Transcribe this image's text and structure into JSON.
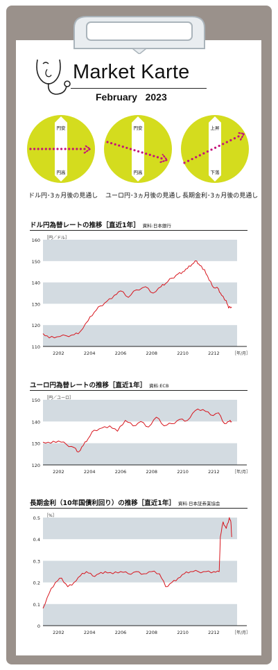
{
  "header": {
    "title": "Market Karte",
    "month": "February",
    "year": "2023"
  },
  "outlook": [
    {
      "top": "円安",
      "bottom": "円高",
      "caption": "ドル円･3ヵ月後の見通し",
      "direction": "flat"
    },
    {
      "top": "円安",
      "bottom": "円高",
      "caption": "ユーロ円･3ヵ月後の見通し",
      "direction": "down"
    },
    {
      "top": "上昇",
      "bottom": "下落",
      "caption": "長期金利･3ヵ月後の見通し",
      "direction": "up"
    }
  ],
  "colors": {
    "accent": "#d4dc1e",
    "dots": "#c4127a",
    "line": "#d7141c",
    "band": "#d3dbe1",
    "board": "#9a918b"
  },
  "chart_data": [
    {
      "type": "line",
      "title": "ドル円為替レートの推移［直近1年］",
      "source": "資料:日本銀行",
      "unit": "［円／ドル］",
      "x_unit": "［年/月］",
      "xticks": [
        "2202",
        "2204",
        "2206",
        "2208",
        "2210",
        "2212"
      ],
      "yticks": [
        "160",
        "150",
        "140",
        "130",
        "120",
        "110"
      ],
      "ylim": [
        110,
        160
      ],
      "xlim": [
        0,
        12.5
      ],
      "bands": [
        [
          150,
          160
        ],
        [
          130,
          140
        ],
        [
          110,
          120
        ]
      ],
      "series": [
        {
          "x": [
            0,
            0.4,
            0.9,
            1.5,
            2,
            2.4,
            2.9,
            3.3,
            3.7,
            4.1,
            4.6,
            5,
            5.5,
            6,
            6.6,
            7.1,
            7.6,
            7.9,
            8.3,
            8.7,
            9,
            9.3,
            9.6,
            9.9,
            10.1,
            10.4,
            10.7,
            11,
            11.3,
            11.5,
            11.8,
            11.95,
            12.15
          ],
          "y": [
            116,
            114,
            114.5,
            115,
            115.5,
            117,
            122,
            126,
            129,
            131,
            134,
            136,
            133,
            136.5,
            138,
            135,
            138,
            139.5,
            142,
            144,
            145,
            146.5,
            148.5,
            150,
            148,
            146,
            141,
            137.5,
            137,
            134,
            131.5,
            128,
            128.5
          ]
        }
      ]
    },
    {
      "type": "line",
      "title": "ユーロ円為替レートの推移［直近1年］",
      "source": "資料:ECB",
      "unit": "［円／ユーロ］",
      "x_unit": "［年/月］",
      "xticks": [
        "2202",
        "2204",
        "2206",
        "2208",
        "2210",
        "2212"
      ],
      "yticks": [
        "150",
        "140",
        "130",
        "120"
      ],
      "ylim": [
        120,
        150
      ],
      "xlim": [
        0,
        12.5
      ],
      "bands": [
        [
          140,
          150
        ],
        [
          120,
          130
        ]
      ],
      "series": [
        {
          "x": [
            0,
            0.5,
            1,
            1.5,
            2,
            2.3,
            2.6,
            2.9,
            3.3,
            3.8,
            4.3,
            4.8,
            5.3,
            5.8,
            6.3,
            6.8,
            7.3,
            7.8,
            8.3,
            8.8,
            9.3,
            9.8,
            10.3,
            10.8,
            11.3,
            11.7,
            12,
            12.15
          ],
          "y": [
            130.5,
            130,
            131,
            129.5,
            128,
            126,
            129,
            132,
            136,
            137,
            138,
            135.5,
            140.5,
            138,
            140,
            137.5,
            142,
            138,
            139,
            141,
            140.5,
            145,
            145.5,
            143,
            144,
            139,
            140,
            140
          ]
        }
      ]
    },
    {
      "type": "line",
      "title": "長期金利（10年国債利回り）の推移［直近1年］",
      "source": "資料:日本証券業協会",
      "unit": "［%］",
      "x_unit": "［年/月］",
      "xticks": [
        "2202",
        "2204",
        "2206",
        "2208",
        "2210",
        "2212"
      ],
      "yticks": [
        "0.5",
        "0.4",
        "0.3",
        "0.2",
        "0.1",
        "0"
      ],
      "ylim": [
        0,
        0.5
      ],
      "xlim": [
        0,
        12.5
      ],
      "bands": [
        [
          0.4,
          0.5
        ],
        [
          0.2,
          0.3
        ],
        [
          0,
          0.1
        ]
      ],
      "series": [
        {
          "x": [
            0,
            0.4,
            0.8,
            1.2,
            1.6,
            2,
            2.4,
            2.8,
            3.2,
            3.6,
            4,
            4.5,
            5,
            5.5,
            6,
            6.5,
            7,
            7.5,
            7.9,
            8.3,
            8.7,
            9.1,
            9.5,
            10,
            10.5,
            11,
            11.35,
            11.42,
            11.6,
            11.8,
            12,
            12.1,
            12.15
          ],
          "y": [
            0.08,
            0.15,
            0.2,
            0.22,
            0.18,
            0.2,
            0.23,
            0.25,
            0.23,
            0.24,
            0.25,
            0.24,
            0.25,
            0.24,
            0.25,
            0.24,
            0.25,
            0.24,
            0.18,
            0.2,
            0.22,
            0.24,
            0.25,
            0.25,
            0.25,
            0.25,
            0.25,
            0.41,
            0.48,
            0.45,
            0.5,
            0.48,
            0.41
          ]
        }
      ]
    }
  ]
}
